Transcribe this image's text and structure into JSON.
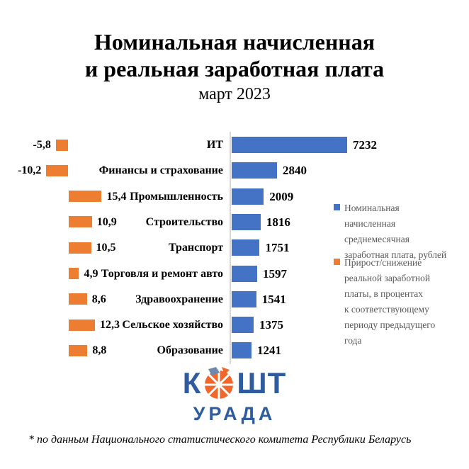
{
  "title": {
    "line1": "Номинальная начисленная",
    "line2": "и реальная заработная плата",
    "subtitle": "март 2023"
  },
  "chart_data": {
    "type": "bar",
    "orientation": "horizontal-diverging",
    "categories": [
      "ИТ",
      "Финансы и страхование",
      "Промышленность",
      "Строительство",
      "Транспорт",
      "Торговля и ремонт авто",
      "Здравоохранение",
      "Сельское хозяйство",
      "Образование"
    ],
    "series": [
      {
        "name": "Номинальная начисленная среднемесячная заработная плата, рублей",
        "unit": "рублей",
        "color": "#4472C4",
        "values": [
          7232,
          2840,
          2009,
          1816,
          1751,
          1597,
          1541,
          1375,
          1241
        ],
        "labels": [
          "7232",
          "2840",
          "2009",
          "1816",
          "1751",
          "1597",
          "1541",
          "1375",
          "1241"
        ]
      },
      {
        "name": "Прирост/снижение реальной заработной платы, в процентах к соответствующему периоду предыдущего года",
        "unit": "процентов",
        "color": "#ED7D31",
        "values": [
          -5.8,
          -10.2,
          15.4,
          10.9,
          10.5,
          4.9,
          8.6,
          12.3,
          8.8
        ],
        "labels": [
          "-5,8",
          "-10,2",
          "15,4",
          "10,9",
          "10,5",
          "4,9",
          "8,6",
          "12,3",
          "8,8"
        ]
      }
    ],
    "xlim_nominal": [
      0,
      7232
    ],
    "grid": false,
    "legend_position": "right"
  },
  "legend": {
    "items": [
      {
        "color": "#4472C4",
        "label": "Номинальная\nначисленная\nсреднемесячная\nзаработная плата, рублей"
      },
      {
        "color": "#ED7D31",
        "label": "Прирост/снижение\nреальной заработной\nплаты, в процентах\nк соответствующему\nпериоду предыдущего\nгода"
      }
    ]
  },
  "logo": {
    "letter_before": "К",
    "letters_after": "ШТ",
    "line2": "УРАДА",
    "blue": "#2F5C9E",
    "orange": "#F0662B"
  },
  "footnote": "* по данным Национального статистического комитета Республики Беларусь",
  "colors": {
    "bar_blue": "#4472C4",
    "bar_orange": "#ED7D31",
    "axis_line": "#D9D9D9",
    "legend_text": "#595959",
    "text": "#000000",
    "background": "#FFFFFF"
  }
}
